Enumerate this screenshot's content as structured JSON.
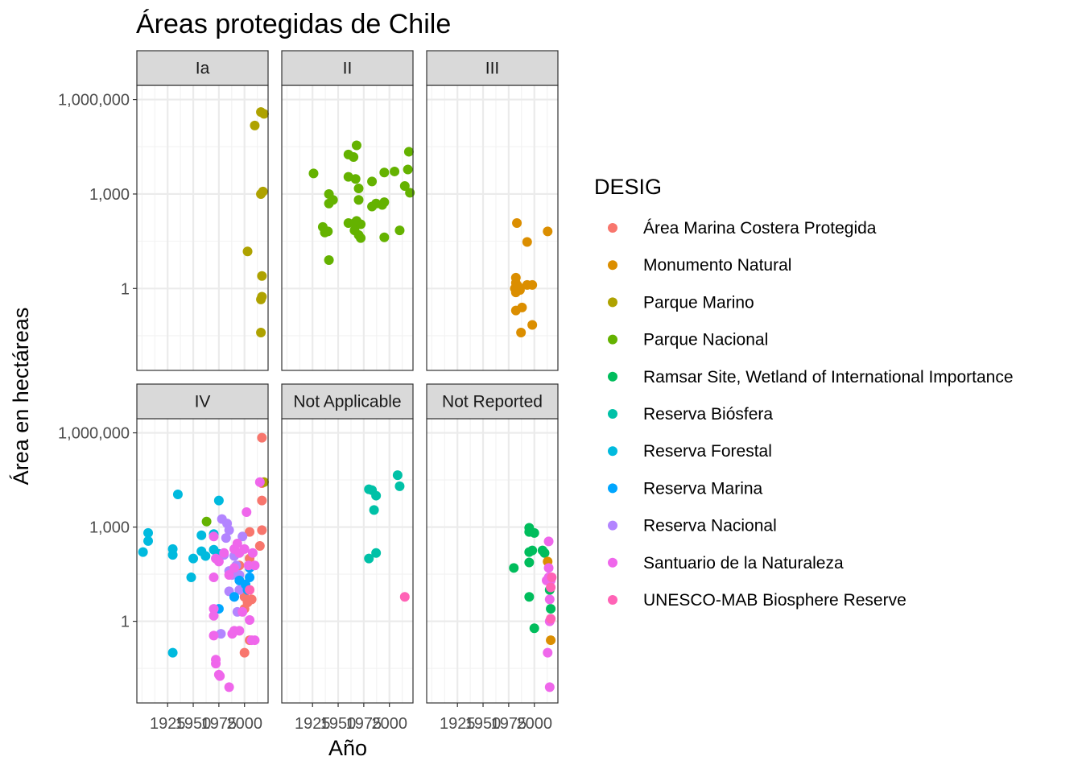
{
  "chart_data": {
    "type": "scatter",
    "title": "Áreas protegidas de Chile",
    "xlabel": "Año",
    "ylabel": "Área en hectáreas",
    "y_scale": "log10",
    "grid": true,
    "x_ticks": [
      1925,
      1950,
      1975,
      2000
    ],
    "x_tick_labels": [
      "1925",
      "1950",
      "1975",
      "2000"
    ],
    "y_ticks": [
      1,
      1000,
      1000000
    ],
    "y_tick_labels": [
      "1",
      "1,000",
      "1,000,000"
    ],
    "legend": {
      "title": "DESIG",
      "position": "right",
      "entries": [
        {
          "label": "Área Marina Costera Protegida",
          "color": "#F8766D"
        },
        {
          "label": "Monumento Natural",
          "color": "#DB8E00"
        },
        {
          "label": "Parque Marino",
          "color": "#AEA200"
        },
        {
          "label": "Parque Nacional",
          "color": "#64B200"
        },
        {
          "label": "Ramsar Site, Wetland of International Importance",
          "color": "#00BD5C"
        },
        {
          "label": "Reserva Biósfera",
          "color": "#00C1A7"
        },
        {
          "label": "Reserva Forestal",
          "color": "#00BADE"
        },
        {
          "label": "Reserva Marina",
          "color": "#00A6FF"
        },
        {
          "label": "Reserva Nacional",
          "color": "#B385FF"
        },
        {
          "label": "Santuario de la Naturaleza",
          "color": "#EF67EB"
        },
        {
          "label": "UNESCO-MAB Biosphere Reserve",
          "color": "#FF63B6"
        }
      ]
    },
    "facets": [
      {
        "label": "Ia",
        "points": [
          {
            "x": 2010,
            "y": 150000,
            "desig": 2
          },
          {
            "x": 2016,
            "y": 400000,
            "desig": 2
          },
          {
            "x": 2019,
            "y": 350000,
            "desig": 2
          },
          {
            "x": 2018,
            "y": 1200,
            "desig": 2
          },
          {
            "x": 2016,
            "y": 1000,
            "desig": 2
          },
          {
            "x": 2003,
            "y": 15,
            "desig": 2
          },
          {
            "x": 2017,
            "y": 2.5,
            "desig": 2
          },
          {
            "x": 2016,
            "y": 0.45,
            "desig": 2
          },
          {
            "x": 2017,
            "y": 0.55,
            "desig": 2
          },
          {
            "x": 2016,
            "y": 0.04,
            "desig": 2
          }
        ]
      },
      {
        "label": "II",
        "points": [
          {
            "x": 1926,
            "y": 4500,
            "desig": 3
          },
          {
            "x": 1935,
            "y": 90,
            "desig": 3
          },
          {
            "x": 1937,
            "y": 60,
            "desig": 3
          },
          {
            "x": 1940,
            "y": 65,
            "desig": 3
          },
          {
            "x": 1941,
            "y": 1000,
            "desig": 3
          },
          {
            "x": 1941,
            "y": 500,
            "desig": 3
          },
          {
            "x": 1945,
            "y": 650,
            "desig": 3
          },
          {
            "x": 1941,
            "y": 8,
            "desig": 3
          },
          {
            "x": 1960,
            "y": 120,
            "desig": 3
          },
          {
            "x": 1960,
            "y": 3500,
            "desig": 3
          },
          {
            "x": 1960,
            "y": 18000,
            "desig": 3
          },
          {
            "x": 1965,
            "y": 15000,
            "desig": 3
          },
          {
            "x": 1967,
            "y": 3000,
            "desig": 3
          },
          {
            "x": 1968,
            "y": 35000,
            "desig": 3
          },
          {
            "x": 1970,
            "y": 1500,
            "desig": 3
          },
          {
            "x": 1970,
            "y": 650,
            "desig": 3
          },
          {
            "x": 1966,
            "y": 120,
            "desig": 3
          },
          {
            "x": 1968,
            "y": 140,
            "desig": 3
          },
          {
            "x": 1972,
            "y": 110,
            "desig": 3
          },
          {
            "x": 1966,
            "y": 70,
            "desig": 3
          },
          {
            "x": 1970,
            "y": 50,
            "desig": 3
          },
          {
            "x": 1972,
            "y": 40,
            "desig": 3
          },
          {
            "x": 1983,
            "y": 2500,
            "desig": 3
          },
          {
            "x": 1983,
            "y": 400,
            "desig": 3
          },
          {
            "x": 1987,
            "y": 500,
            "desig": 3
          },
          {
            "x": 1993,
            "y": 450,
            "desig": 3
          },
          {
            "x": 1995,
            "y": 550,
            "desig": 3
          },
          {
            "x": 1995,
            "y": 4800,
            "desig": 3
          },
          {
            "x": 1995,
            "y": 42,
            "desig": 3
          },
          {
            "x": 2005,
            "y": 5200,
            "desig": 3
          },
          {
            "x": 2010,
            "y": 70,
            "desig": 3
          },
          {
            "x": 2015,
            "y": 1800,
            "desig": 3
          },
          {
            "x": 2018,
            "y": 6000,
            "desig": 3
          },
          {
            "x": 2020,
            "y": 1100,
            "desig": 3
          },
          {
            "x": 2019,
            "y": 22000,
            "desig": 3
          }
        ]
      },
      {
        "label": "III",
        "points": [
          {
            "x": 1983,
            "y": 120,
            "desig": 1
          },
          {
            "x": 1982,
            "y": 2.2,
            "desig": 1
          },
          {
            "x": 1982,
            "y": 1.5,
            "desig": 1
          },
          {
            "x": 1984,
            "y": 1.2,
            "desig": 1
          },
          {
            "x": 1981,
            "y": 1,
            "desig": 1
          },
          {
            "x": 1983,
            "y": 0.9,
            "desig": 1
          },
          {
            "x": 1986,
            "y": 0.9,
            "desig": 1
          },
          {
            "x": 1982,
            "y": 0.75,
            "desig": 1
          },
          {
            "x": 1988,
            "y": 0.25,
            "desig": 1
          },
          {
            "x": 1982,
            "y": 0.2,
            "desig": 1
          },
          {
            "x": 1987,
            "y": 0.04,
            "desig": 1
          },
          {
            "x": 1993,
            "y": 30,
            "desig": 1
          },
          {
            "x": 1993,
            "y": 1.3,
            "desig": 1
          },
          {
            "x": 1998,
            "y": 1.3,
            "desig": 1
          },
          {
            "x": 1998,
            "y": 0.07,
            "desig": 1
          },
          {
            "x": 2013,
            "y": 65,
            "desig": 1
          }
        ]
      },
      {
        "label": "IV",
        "points": [
          {
            "x": 2017,
            "y": 700000,
            "desig": 0
          },
          {
            "x": 2017,
            "y": 7000,
            "desig": 0
          },
          {
            "x": 2017,
            "y": 25000,
            "desig": 0
          },
          {
            "x": 2015,
            "y": 250,
            "desig": 0
          },
          {
            "x": 2017,
            "y": 800,
            "desig": 0
          },
          {
            "x": 2005,
            "y": 700,
            "desig": 0
          },
          {
            "x": 2005,
            "y": 0.25,
            "desig": 0
          },
          {
            "x": 2000,
            "y": 0.1,
            "desig": 0
          },
          {
            "x": 2000,
            "y": 2.5,
            "desig": 0
          },
          {
            "x": 2003,
            "y": 4,
            "desig": 0
          },
          {
            "x": 2000,
            "y": 6,
            "desig": 0
          },
          {
            "x": 2007,
            "y": 5,
            "desig": 0
          },
          {
            "x": 1995,
            "y": 60,
            "desig": 0
          },
          {
            "x": 2005,
            "y": 100,
            "desig": 0
          },
          {
            "x": 2019,
            "y": 27000,
            "desig": 2
          },
          {
            "x": 1963,
            "y": 1500,
            "desig": 3
          },
          {
            "x": 1901,
            "y": 160,
            "desig": 6
          },
          {
            "x": 1906,
            "y": 650,
            "desig": 6
          },
          {
            "x": 1906,
            "y": 360,
            "desig": 6
          },
          {
            "x": 1930,
            "y": 200,
            "desig": 6
          },
          {
            "x": 1930,
            "y": 130,
            "desig": 6
          },
          {
            "x": 1935,
            "y": 11000,
            "desig": 6
          },
          {
            "x": 1950,
            "y": 100,
            "desig": 6
          },
          {
            "x": 1948,
            "y": 25,
            "desig": 6
          },
          {
            "x": 1930,
            "y": 0.1,
            "desig": 6
          },
          {
            "x": 1958,
            "y": 550,
            "desig": 6
          },
          {
            "x": 1958,
            "y": 170,
            "desig": 6
          },
          {
            "x": 1962,
            "y": 120,
            "desig": 6
          },
          {
            "x": 1970,
            "y": 190,
            "desig": 6
          },
          {
            "x": 1970,
            "y": 600,
            "desig": 6
          },
          {
            "x": 1975,
            "y": 7000,
            "desig": 6
          },
          {
            "x": 1975,
            "y": 140,
            "desig": 6
          },
          {
            "x": 1980,
            "y": 130,
            "desig": 8
          },
          {
            "x": 1978,
            "y": 1800,
            "desig": 8
          },
          {
            "x": 1983,
            "y": 1300,
            "desig": 8
          },
          {
            "x": 1985,
            "y": 800,
            "desig": 8
          },
          {
            "x": 1982,
            "y": 450,
            "desig": 8
          },
          {
            "x": 1985,
            "y": 40,
            "desig": 8
          },
          {
            "x": 1988,
            "y": 30,
            "desig": 8
          },
          {
            "x": 1990,
            "y": 120,
            "desig": 8
          },
          {
            "x": 1992,
            "y": 60,
            "desig": 8
          },
          {
            "x": 1990,
            "y": 6,
            "desig": 8
          },
          {
            "x": 1995,
            "y": 10,
            "desig": 8
          },
          {
            "x": 1998,
            "y": 500,
            "desig": 8
          },
          {
            "x": 1985,
            "y": 9,
            "desig": 8
          },
          {
            "x": 1977,
            "y": 0.4,
            "desig": 8
          },
          {
            "x": 1993,
            "y": 2,
            "desig": 8
          },
          {
            "x": 1995,
            "y": 30,
            "desig": 8
          },
          {
            "x": 1995,
            "y": 20,
            "desig": 7
          },
          {
            "x": 2001,
            "y": 15,
            "desig": 7
          },
          {
            "x": 2005,
            "y": 25,
            "desig": 7
          },
          {
            "x": 2005,
            "y": 50,
            "desig": 7
          },
          {
            "x": 1990,
            "y": 6,
            "desig": 7
          },
          {
            "x": 2003,
            "y": 10,
            "desig": 7
          },
          {
            "x": 1975,
            "y": 2.5,
            "desig": 7
          },
          {
            "x": 1970,
            "y": 500,
            "desig": 9
          },
          {
            "x": 1972,
            "y": 100,
            "desig": 9
          },
          {
            "x": 1975,
            "y": 80,
            "desig": 9
          },
          {
            "x": 1980,
            "y": 150,
            "desig": 9
          },
          {
            "x": 1970,
            "y": 25,
            "desig": 9
          },
          {
            "x": 1970,
            "y": 2.5,
            "desig": 9
          },
          {
            "x": 1970,
            "y": 1.5,
            "desig": 9
          },
          {
            "x": 1970,
            "y": 0.35,
            "desig": 9
          },
          {
            "x": 1972,
            "y": 0.06,
            "desig": 9
          },
          {
            "x": 1972,
            "y": 0.045,
            "desig": 9
          },
          {
            "x": 1975,
            "y": 0.02,
            "desig": 9
          },
          {
            "x": 1976,
            "y": 0.018,
            "desig": 9
          },
          {
            "x": 1985,
            "y": 0.008,
            "desig": 9
          },
          {
            "x": 1985,
            "y": 30,
            "desig": 9
          },
          {
            "x": 1990,
            "y": 50,
            "desig": 9
          },
          {
            "x": 1990,
            "y": 200,
            "desig": 9
          },
          {
            "x": 1993,
            "y": 300,
            "desig": 9
          },
          {
            "x": 1995,
            "y": 150,
            "desig": 9
          },
          {
            "x": 1988,
            "y": 0.4,
            "desig": 9
          },
          {
            "x": 1990,
            "y": 0.5,
            "desig": 9
          },
          {
            "x": 1995,
            "y": 0.5,
            "desig": 9
          },
          {
            "x": 1998,
            "y": 2,
            "desig": 9
          },
          {
            "x": 2002,
            "y": 3000,
            "desig": 9
          },
          {
            "x": 2004,
            "y": 60,
            "desig": 9
          },
          {
            "x": 2005,
            "y": 1.1,
            "desig": 9
          },
          {
            "x": 2007,
            "y": 0.25,
            "desig": 9
          },
          {
            "x": 2010,
            "y": 0.25,
            "desig": 9
          },
          {
            "x": 2008,
            "y": 150,
            "desig": 9
          },
          {
            "x": 2010,
            "y": 60,
            "desig": 9
          },
          {
            "x": 2015,
            "y": 27000,
            "desig": 9
          },
          {
            "x": 2000,
            "y": 200,
            "desig": 9
          },
          {
            "x": 2005,
            "y": 10,
            "desig": 10
          }
        ]
      },
      {
        "label": "Not Applicable",
        "points": [
          {
            "x": 1980,
            "y": 16000,
            "desig": 5
          },
          {
            "x": 1983,
            "y": 15000,
            "desig": 5
          },
          {
            "x": 1987,
            "y": 10000,
            "desig": 5
          },
          {
            "x": 1985,
            "y": 3500,
            "desig": 5
          },
          {
            "x": 1980,
            "y": 100,
            "desig": 5
          },
          {
            "x": 1987,
            "y": 150,
            "desig": 5
          },
          {
            "x": 2008,
            "y": 45000,
            "desig": 5
          },
          {
            "x": 2010,
            "y": 20000,
            "desig": 5
          },
          {
            "x": 2015,
            "y": 6,
            "desig": 10
          }
        ]
      },
      {
        "label": "Not Reported",
        "points": [
          {
            "x": 1980,
            "y": 50,
            "desig": 4
          },
          {
            "x": 1995,
            "y": 950,
            "desig": 4
          },
          {
            "x": 1995,
            "y": 700,
            "desig": 4
          },
          {
            "x": 2000,
            "y": 650,
            "desig": 4
          },
          {
            "x": 1998,
            "y": 180,
            "desig": 4
          },
          {
            "x": 1995,
            "y": 160,
            "desig": 4
          },
          {
            "x": 2010,
            "y": 150,
            "desig": 4
          },
          {
            "x": 2008,
            "y": 180,
            "desig": 4
          },
          {
            "x": 1995,
            "y": 75,
            "desig": 4
          },
          {
            "x": 1995,
            "y": 6,
            "desig": 4
          },
          {
            "x": 2000,
            "y": 0.6,
            "desig": 4
          },
          {
            "x": 2016,
            "y": 2.5,
            "desig": 4
          },
          {
            "x": 2015,
            "y": 10,
            "desig": 4
          },
          {
            "x": 2016,
            "y": 0.25,
            "desig": 1
          },
          {
            "x": 2013,
            "y": 80,
            "desig": 1
          },
          {
            "x": 2014,
            "y": 350,
            "desig": 9
          },
          {
            "x": 2014,
            "y": 50,
            "desig": 9
          },
          {
            "x": 2014,
            "y": 25,
            "desig": 9
          },
          {
            "x": 2012,
            "y": 20,
            "desig": 9
          },
          {
            "x": 2016,
            "y": 20,
            "desig": 9
          },
          {
            "x": 2015,
            "y": 5,
            "desig": 9
          },
          {
            "x": 2015,
            "y": 1,
            "desig": 9
          },
          {
            "x": 2013,
            "y": 0.1,
            "desig": 9
          },
          {
            "x": 2015,
            "y": 0.008,
            "desig": 9
          },
          {
            "x": 2016,
            "y": 12,
            "desig": 10
          },
          {
            "x": 2017,
            "y": 25,
            "desig": 10
          },
          {
            "x": 2016,
            "y": 1.2,
            "desig": 10
          }
        ]
      }
    ]
  }
}
